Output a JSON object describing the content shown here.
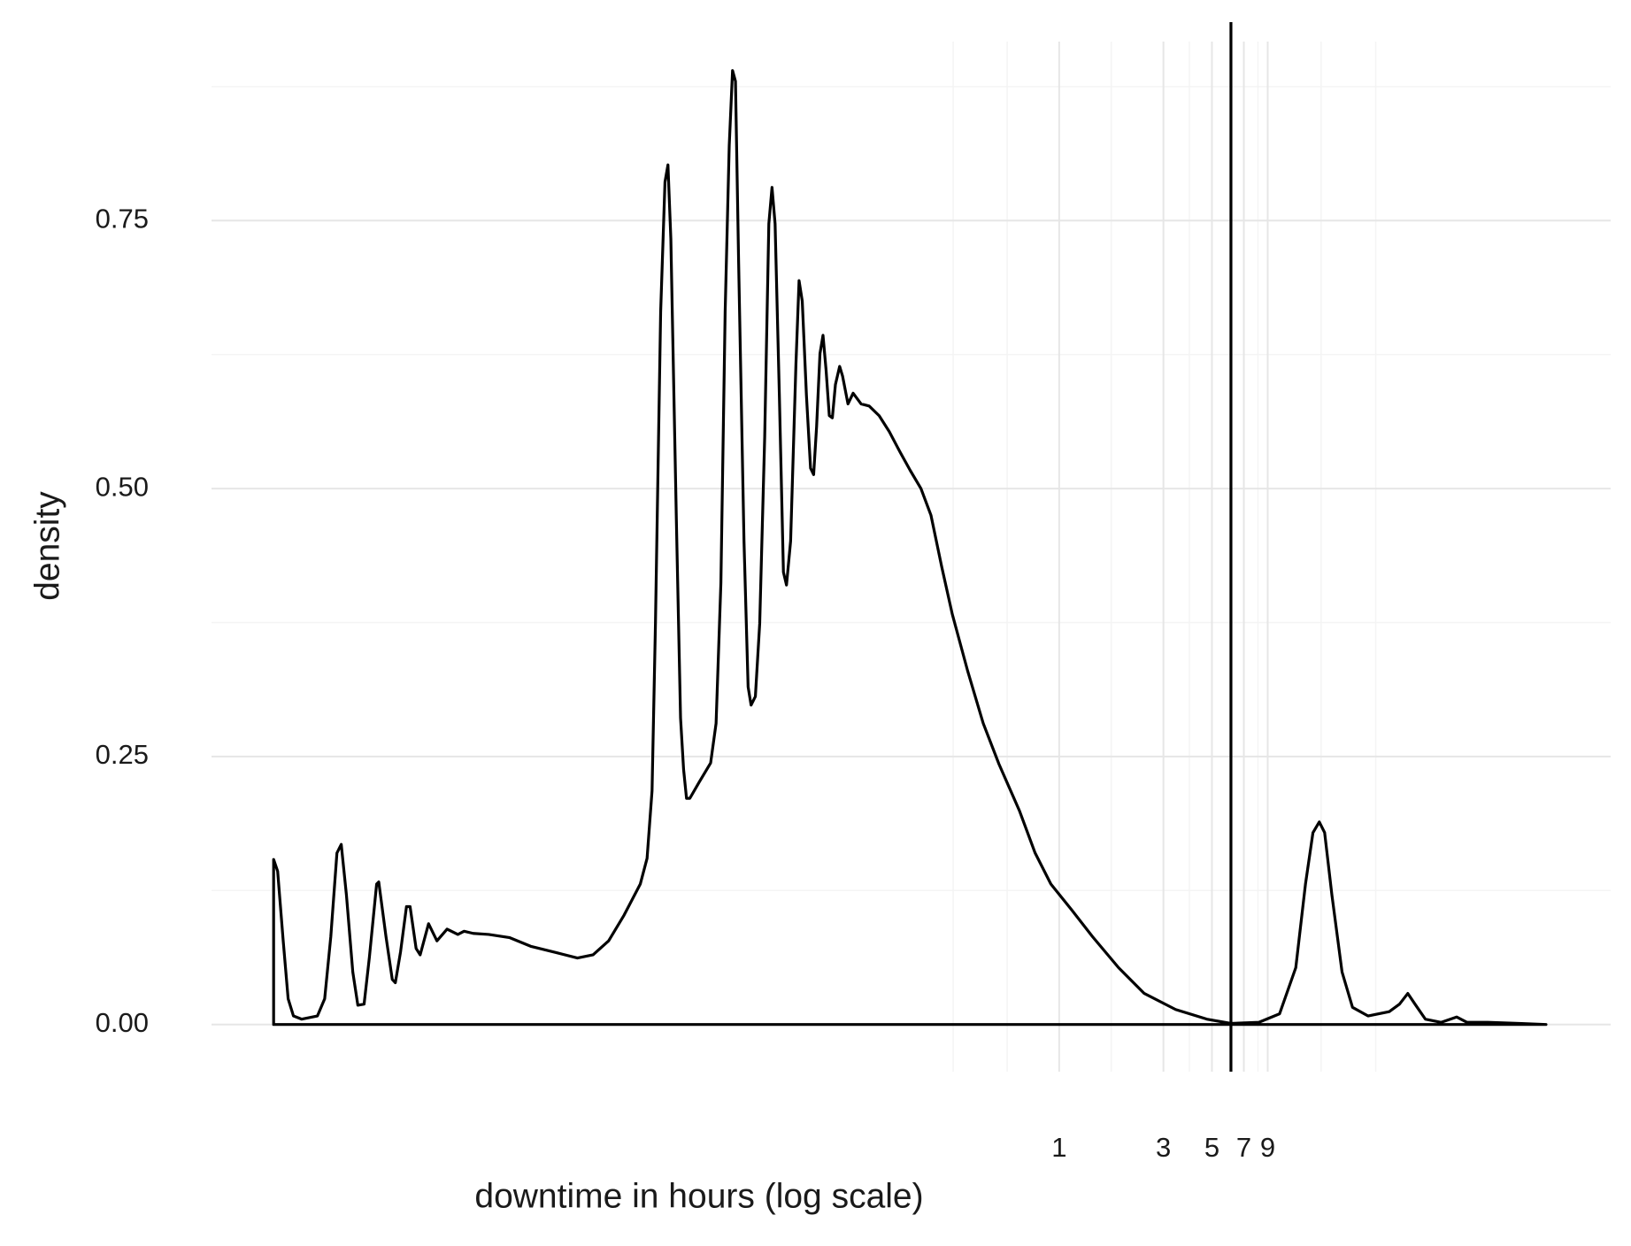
{
  "chart_data": {
    "type": "density",
    "x_label": "downtime in hours (log scale)",
    "y_label": "density",
    "x_log": true,
    "grid": true,
    "color": "#000000",
    "xlim": [
      0.000132,
      334
    ],
    "ylim": [
      -0.044,
      0.917
    ],
    "xticks": [
      1,
      3,
      5,
      7,
      9
    ],
    "xminor": [
      0.327,
      0.578,
      1.73,
      3.94,
      8.12,
      15.8,
      28.1
    ],
    "yticks": [
      {
        "value": 0,
        "label": "0.00"
      },
      {
        "value": 0.25,
        "label": "0.25"
      },
      {
        "value": 0.5,
        "label": "0.50"
      },
      {
        "value": 0.75,
        "label": "0.75"
      }
    ],
    "yminor": [
      0.125,
      0.375,
      0.625,
      0.875
    ],
    "vline": 6.11,
    "x": [
      0.000254,
      0.000254,
      0.000265,
      0.000281,
      0.000296,
      0.000313,
      0.000341,
      0.000403,
      0.000435,
      0.000464,
      0.000495,
      0.000518,
      0.000547,
      0.000585,
      0.000617,
      0.000659,
      0.000697,
      0.000752,
      0.000769,
      0.00083,
      0.000887,
      0.000916,
      0.000968,
      0.00103,
      0.00107,
      0.00114,
      0.00119,
      0.0013,
      0.00142,
      0.00158,
      0.00177,
      0.00189,
      0.00208,
      0.00245,
      0.00306,
      0.00381,
      0.00501,
      0.00624,
      0.00736,
      0.00867,
      0.0102,
      0.0121,
      0.013,
      0.0137,
      0.0142,
      0.015,
      0.0157,
      0.0162,
      0.0167,
      0.0177,
      0.0185,
      0.0191,
      0.0197,
      0.0204,
      0.0225,
      0.0254,
      0.0269,
      0.0283,
      0.0296,
      0.0309,
      0.032,
      0.033,
      0.0341,
      0.0361,
      0.0377,
      0.0389,
      0.0407,
      0.0426,
      0.0449,
      0.0469,
      0.0485,
      0.0501,
      0.0524,
      0.0547,
      0.0565,
      0.059,
      0.0624,
      0.0645,
      0.0667,
      0.0697,
      0.0728,
      0.0752,
      0.0776,
      0.0804,
      0.083,
      0.0857,
      0.0887,
      0.0916,
      0.0946,
      0.0989,
      0.102,
      0.108,
      0.114,
      0.124,
      0.135,
      0.15,
      0.167,
      0.187,
      0.208,
      0.233,
      0.259,
      0.29,
      0.324,
      0.381,
      0.449,
      0.53,
      0.659,
      0.776,
      0.916,
      1.14,
      1.42,
      1.87,
      2.45,
      3.41,
      4.74,
      6.11,
      8.2,
      10.2,
      12.1,
      13.4,
      14.5,
      15.5,
      16.4,
      17.7,
      19.7,
      22.0,
      25.9,
      32.4,
      36.1,
      39.4,
      42.5,
      47.4,
      56.0,
      65.9,
      73.6,
      91.6,
      127,
      169
    ],
    "values": [
      0,
      0.154,
      0.143,
      0.078,
      0.024,
      0.008,
      0.005,
      0.008,
      0.024,
      0.082,
      0.16,
      0.168,
      0.121,
      0.049,
      0.018,
      0.019,
      0.063,
      0.131,
      0.133,
      0.082,
      0.042,
      0.039,
      0.068,
      0.11,
      0.11,
      0.071,
      0.065,
      0.094,
      0.078,
      0.089,
      0.084,
      0.087,
      0.085,
      0.084,
      0.081,
      0.073,
      0.067,
      0.062,
      0.065,
      0.078,
      0.102,
      0.131,
      0.155,
      0.218,
      0.374,
      0.665,
      0.786,
      0.802,
      0.733,
      0.471,
      0.286,
      0.238,
      0.211,
      0.211,
      0.226,
      0.244,
      0.281,
      0.412,
      0.665,
      0.82,
      0.89,
      0.88,
      0.713,
      0.451,
      0.315,
      0.298,
      0.306,
      0.374,
      0.548,
      0.747,
      0.781,
      0.747,
      0.587,
      0.422,
      0.41,
      0.451,
      0.616,
      0.694,
      0.675,
      0.587,
      0.519,
      0.513,
      0.558,
      0.626,
      0.643,
      0.611,
      0.568,
      0.566,
      0.597,
      0.614,
      0.605,
      0.579,
      0.589,
      0.579,
      0.577,
      0.568,
      0.553,
      0.534,
      0.517,
      0.5,
      0.475,
      0.427,
      0.383,
      0.33,
      0.281,
      0.243,
      0.199,
      0.16,
      0.131,
      0.107,
      0.082,
      0.053,
      0.029,
      0.014,
      0.005,
      0.001,
      0.002,
      0.01,
      0.053,
      0.131,
      0.179,
      0.189,
      0.179,
      0.121,
      0.049,
      0.016,
      0.008,
      0.012,
      0.019,
      0.029,
      0.019,
      0.005,
      0.002,
      0.007,
      0.002,
      0.002,
      0.001,
      0
    ]
  }
}
